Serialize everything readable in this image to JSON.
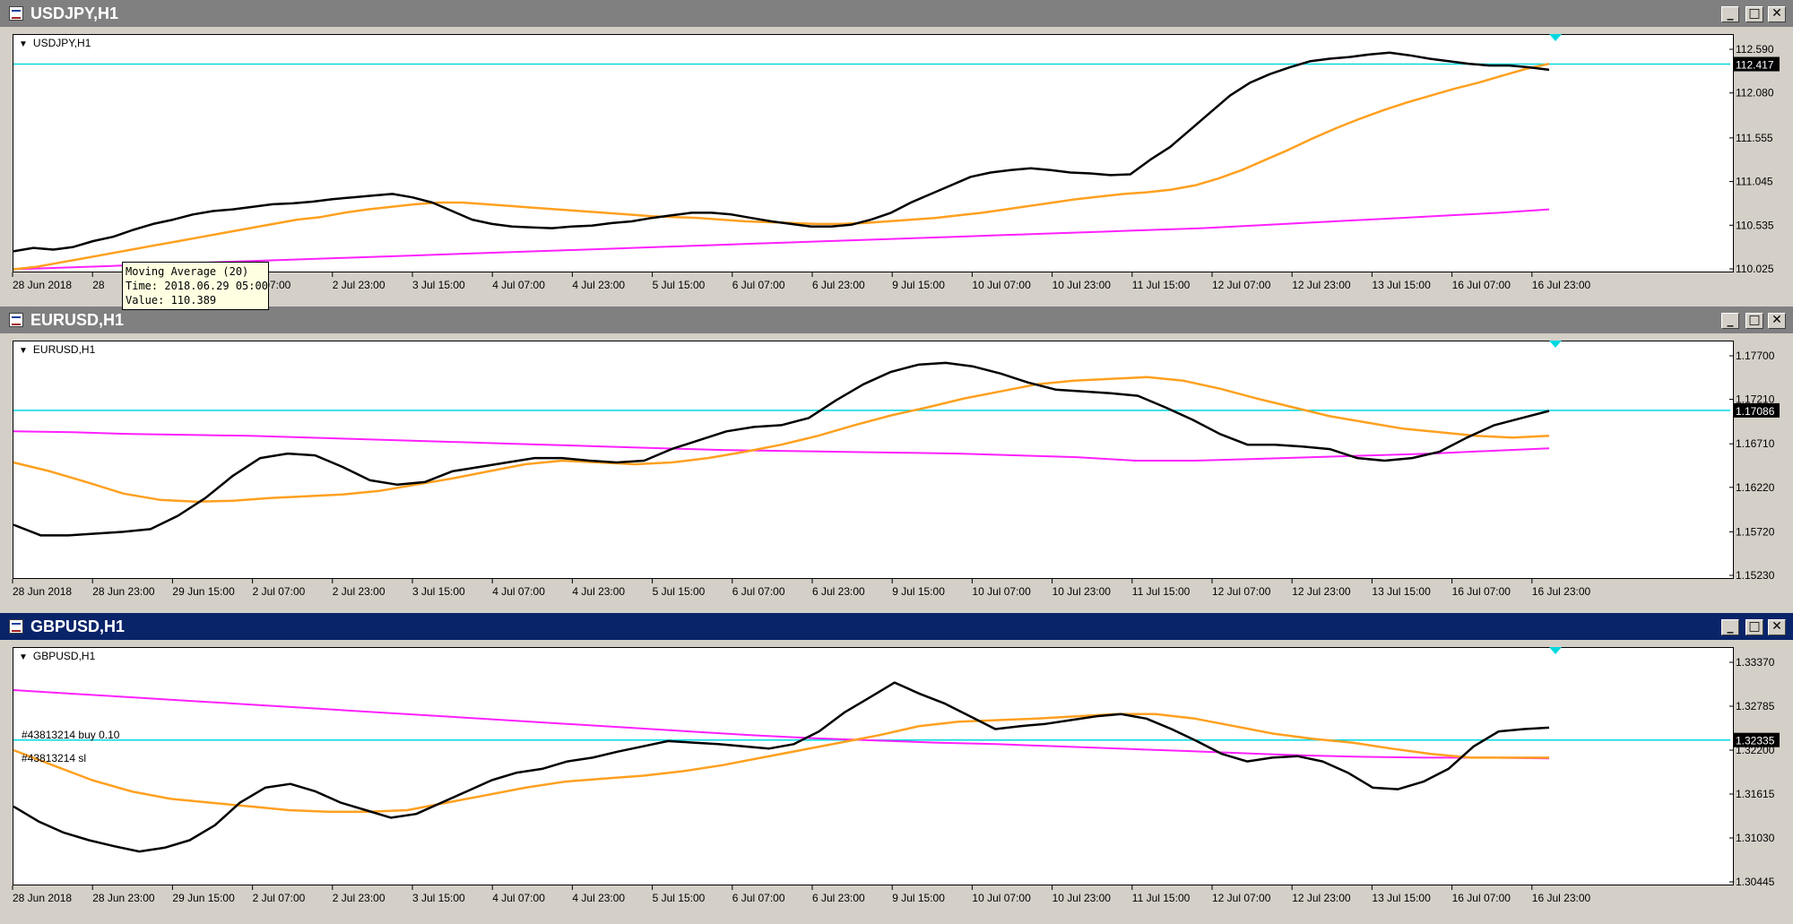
{
  "time_labels": [
    "28 Jun 2018",
    "28 Jun 23:00",
    "29 Jun 15:00",
    "2 Jul 07:00",
    "2 Jul 23:00",
    "3 Jul 15:00",
    "4 Jul 07:00",
    "4 Jul 23:00",
    "5 Jul 15:00",
    "6 Jul 07:00",
    "6 Jul 23:00",
    "9 Jul 15:00",
    "10 Jul 07:00",
    "10 Jul 23:00",
    "11 Jul 15:00",
    "12 Jul 07:00",
    "12 Jul 23:00",
    "13 Jul 15:00",
    "16 Jul 07:00",
    "16 Jul 23:00"
  ],
  "time_labels_usdjpy": [
    "28 Jun 2018",
    "28 ",
    "",
    "ul 07:00",
    "2 Jul 23:00",
    "3 Jul 15:00",
    "4 Jul 07:00",
    "4 Jul 23:00",
    "5 Jul 15:00",
    "6 Jul 07:00",
    "6 Jul 23:00",
    "9 Jul 15:00",
    "10 Jul 07:00",
    "10 Jul 23:00",
    "11 Jul 15:00",
    "12 Jul 07:00",
    "12 Jul 23:00",
    "13 Jul 15:00",
    "16 Jul 07:00",
    "16 Jul 23:00"
  ],
  "colors": {
    "price": "#000000",
    "ma_fast": "#ffa020",
    "ma_slow": "#ff20ff",
    "level": "#00d8e0",
    "active_title": "#0a246a",
    "inactive_title": "#808080"
  },
  "windows": [
    {
      "title": "USDJPY,H1",
      "symbol_label": "USDJPY,H1",
      "active": false,
      "current_price": "112.417",
      "price_labels": [
        "112.590",
        "112.080",
        "111.555",
        "111.045",
        "110.535",
        "110.025"
      ],
      "ylim": [
        110.025,
        112.59
      ],
      "level": 112.417,
      "price": [
        110.23,
        110.27,
        110.25,
        110.28,
        110.35,
        110.4,
        110.48,
        110.55,
        110.6,
        110.66,
        110.7,
        110.72,
        110.75,
        110.78,
        110.79,
        110.81,
        110.84,
        110.86,
        110.88,
        110.9,
        110.86,
        110.8,
        110.7,
        110.6,
        110.55,
        110.52,
        110.51,
        110.5,
        110.52,
        110.53,
        110.56,
        110.58,
        110.62,
        110.65,
        110.68,
        110.68,
        110.66,
        110.62,
        110.58,
        110.55,
        110.52,
        110.52,
        110.54,
        110.6,
        110.68,
        110.8,
        110.9,
        111.0,
        111.1,
        111.15,
        111.18,
        111.2,
        111.18,
        111.15,
        111.14,
        111.12,
        111.13,
        111.3,
        111.45,
        111.65,
        111.85,
        112.05,
        112.2,
        112.3,
        112.38,
        112.45,
        112.48,
        112.5,
        112.53,
        112.55,
        112.52,
        112.48,
        112.45,
        112.42,
        112.4,
        112.4,
        112.38,
        112.35
      ],
      "ma_fast": [
        110.02,
        110.05,
        110.1,
        110.15,
        110.2,
        110.25,
        110.3,
        110.35,
        110.4,
        110.45,
        110.5,
        110.55,
        110.6,
        110.63,
        110.68,
        110.72,
        110.75,
        110.78,
        110.8,
        110.8,
        110.78,
        110.76,
        110.74,
        110.72,
        110.7,
        110.68,
        110.66,
        110.64,
        110.63,
        110.62,
        110.6,
        110.58,
        110.57,
        110.56,
        110.55,
        110.55,
        110.56,
        110.58,
        110.6,
        110.62,
        110.65,
        110.68,
        110.72,
        110.76,
        110.8,
        110.84,
        110.87,
        110.9,
        110.92,
        110.95,
        111.0,
        111.08,
        111.18,
        111.3,
        111.42,
        111.55,
        111.67,
        111.78,
        111.88,
        111.97,
        112.05,
        112.13,
        112.2,
        112.28,
        112.36,
        112.42
      ],
      "ma_slow": [
        110.02,
        110.04,
        110.06,
        110.08,
        110.1,
        110.12,
        110.14,
        110.16,
        110.18,
        110.2,
        110.22,
        110.24,
        110.26,
        110.28,
        110.3,
        110.32,
        110.34,
        110.36,
        110.38,
        110.4,
        110.42,
        110.44,
        110.46,
        110.48,
        110.5,
        110.53,
        110.56,
        110.59,
        110.62,
        110.65,
        110.68,
        110.72
      ]
    },
    {
      "title": "EURUSD,H1",
      "symbol_label": "EURUSD,H1",
      "active": false,
      "current_price": "1.17086",
      "price_labels": [
        "1.17700",
        "1.17210",
        "1.16710",
        "1.16220",
        "1.15720",
        "1.15230"
      ],
      "ylim": [
        1.1523,
        1.177
      ],
      "level": 1.17086,
      "price": [
        1.158,
        1.1568,
        1.1568,
        1.157,
        1.1572,
        1.1575,
        1.159,
        1.161,
        1.1635,
        1.1655,
        1.166,
        1.1658,
        1.1645,
        1.163,
        1.1625,
        1.1628,
        1.164,
        1.1645,
        1.165,
        1.1655,
        1.1655,
        1.1652,
        1.165,
        1.1652,
        1.1665,
        1.1675,
        1.1685,
        1.169,
        1.1692,
        1.17,
        1.172,
        1.1738,
        1.1752,
        1.176,
        1.1762,
        1.1758,
        1.175,
        1.174,
        1.1732,
        1.173,
        1.1728,
        1.1725,
        1.1712,
        1.1698,
        1.1682,
        1.167,
        1.167,
        1.1668,
        1.1665,
        1.1655,
        1.1652,
        1.1655,
        1.1662,
        1.1678,
        1.1692,
        1.17,
        1.1708
      ],
      "ma_fast": [
        1.165,
        1.164,
        1.1628,
        1.1615,
        1.1608,
        1.1606,
        1.1607,
        1.161,
        1.1612,
        1.1614,
        1.1618,
        1.1625,
        1.1632,
        1.164,
        1.1648,
        1.1652,
        1.165,
        1.1648,
        1.165,
        1.1655,
        1.1662,
        1.167,
        1.168,
        1.1692,
        1.1703,
        1.1712,
        1.1722,
        1.173,
        1.1738,
        1.1742,
        1.1744,
        1.1746,
        1.1742,
        1.1733,
        1.1722,
        1.1712,
        1.1702,
        1.1695,
        1.1688,
        1.1684,
        1.168,
        1.1678,
        1.168
      ],
      "ma_slow": [
        1.1685,
        1.1684,
        1.1682,
        1.1681,
        1.168,
        1.1678,
        1.1676,
        1.1674,
        1.1672,
        1.167,
        1.1668,
        1.1666,
        1.1664,
        1.1663,
        1.1662,
        1.1661,
        1.166,
        1.1658,
        1.1656,
        1.1652,
        1.1652,
        1.1654,
        1.1656,
        1.1658,
        1.166,
        1.1663,
        1.1666
      ]
    },
    {
      "title": "GBPUSD,H1",
      "symbol_label": "GBPUSD,H1",
      "active": true,
      "current_price": "1.32335",
      "price_labels": [
        "1.33370",
        "1.32785",
        "1.32200",
        "1.31615",
        "1.31030",
        "1.30445"
      ],
      "ylim": [
        1.30445,
        1.3337
      ],
      "level": 1.32335,
      "orders": [
        "#43813214 buy 0.10",
        "#43813214 sl"
      ],
      "price": [
        1.3145,
        1.3125,
        1.311,
        1.31,
        1.3092,
        1.3085,
        1.309,
        1.31,
        1.312,
        1.315,
        1.317,
        1.3175,
        1.3165,
        1.315,
        1.314,
        1.313,
        1.3135,
        1.315,
        1.3165,
        1.318,
        1.319,
        1.3195,
        1.3205,
        1.321,
        1.3218,
        1.3225,
        1.3232,
        1.323,
        1.3228,
        1.3225,
        1.3222,
        1.3228,
        1.3245,
        1.327,
        1.329,
        1.331,
        1.3295,
        1.3282,
        1.3265,
        1.3248,
        1.3252,
        1.3255,
        1.326,
        1.3265,
        1.3268,
        1.3262,
        1.3248,
        1.3232,
        1.3215,
        1.3205,
        1.321,
        1.3212,
        1.3205,
        1.319,
        1.317,
        1.3168,
        1.3178,
        1.3195,
        1.3225,
        1.3245,
        1.3248,
        1.325
      ],
      "ma_fast": [
        1.322,
        1.32,
        1.318,
        1.3165,
        1.3155,
        1.315,
        1.3145,
        1.314,
        1.3138,
        1.3138,
        1.314,
        1.315,
        1.316,
        1.317,
        1.3178,
        1.3182,
        1.3186,
        1.3192,
        1.32,
        1.321,
        1.322,
        1.323,
        1.324,
        1.3252,
        1.3258,
        1.326,
        1.3262,
        1.3265,
        1.3268,
        1.3268,
        1.3262,
        1.3252,
        1.3242,
        1.3235,
        1.323,
        1.3222,
        1.3215,
        1.321,
        1.321,
        1.321
      ],
      "ma_slow": [
        1.33,
        1.3295,
        1.329,
        1.3285,
        1.328,
        1.3275,
        1.327,
        1.3265,
        1.326,
        1.3255,
        1.325,
        1.3245,
        1.324,
        1.3236,
        1.3233,
        1.323,
        1.3228,
        1.3225,
        1.3222,
        1.3219,
        1.3216,
        1.3213,
        1.3211,
        1.321,
        1.321,
        1.3209
      ]
    }
  ],
  "tooltip": {
    "line1": "Moving Average (20)",
    "line2": "Time: 2018.06.29 05:00",
    "line3": "Value: 110.389"
  },
  "window_buttons": {
    "minimize": "_",
    "maximize": "□",
    "close": "✕"
  }
}
